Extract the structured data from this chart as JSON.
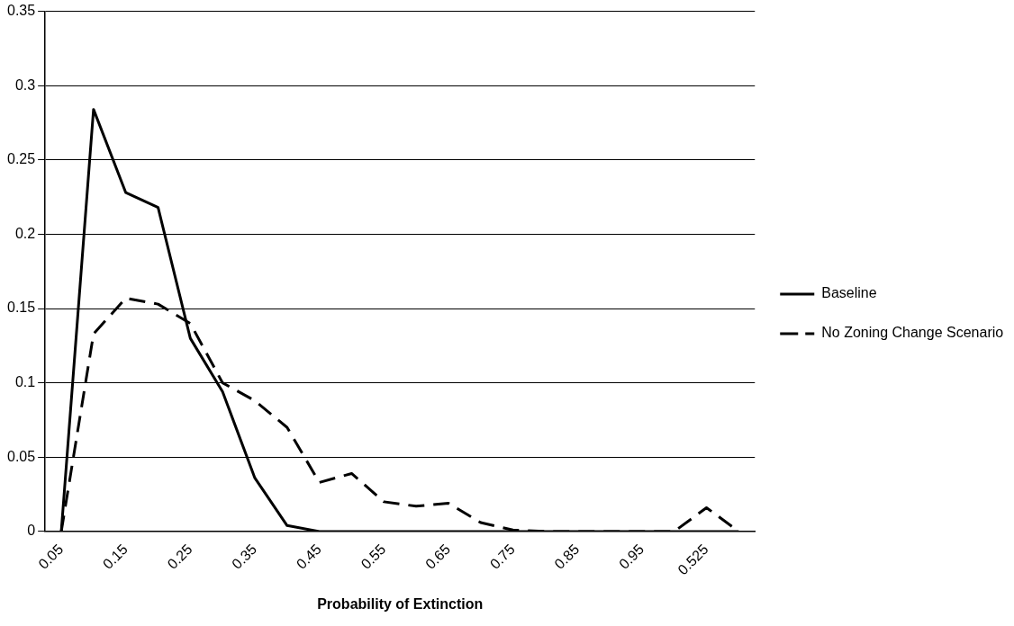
{
  "chart_data": {
    "type": "line",
    "xlabel": "Probability of Extinction",
    "categories": [
      "0.05",
      null,
      "0.15",
      null,
      "0.25",
      null,
      "0.35",
      null,
      "0.45",
      null,
      "0.55",
      null,
      "0.65",
      null,
      "0.75",
      null,
      "0.85",
      null,
      "0.95",
      null,
      "0.525",
      null
    ],
    "series": [
      {
        "name": "Baseline",
        "color": "#000000",
        "line_style": "solid",
        "values": [
          0,
          0.284,
          0.228,
          0.218,
          0.13,
          0.094,
          0.036,
          0.004,
          0,
          0,
          0,
          0,
          0,
          0,
          0,
          0,
          0,
          0,
          0,
          0,
          0,
          0
        ]
      },
      {
        "name": "No Zoning Change Scenario",
        "color": "#000000",
        "line_style": "dashed",
        "values": [
          0,
          0.133,
          0.157,
          0.153,
          0.14,
          0.1,
          0.088,
          0.07,
          0.033,
          0.039,
          0.02,
          0.017,
          0.019,
          0.006,
          0.001,
          0,
          0,
          0,
          0,
          0,
          0.016,
          0
        ]
      }
    ],
    "ylim": [
      0,
      0.35
    ],
    "yticks": [
      0,
      0.05,
      0.1,
      0.15,
      0.2,
      0.25,
      0.3,
      0.35
    ],
    "grid": "y",
    "legend": "right",
    "marker": "none"
  }
}
